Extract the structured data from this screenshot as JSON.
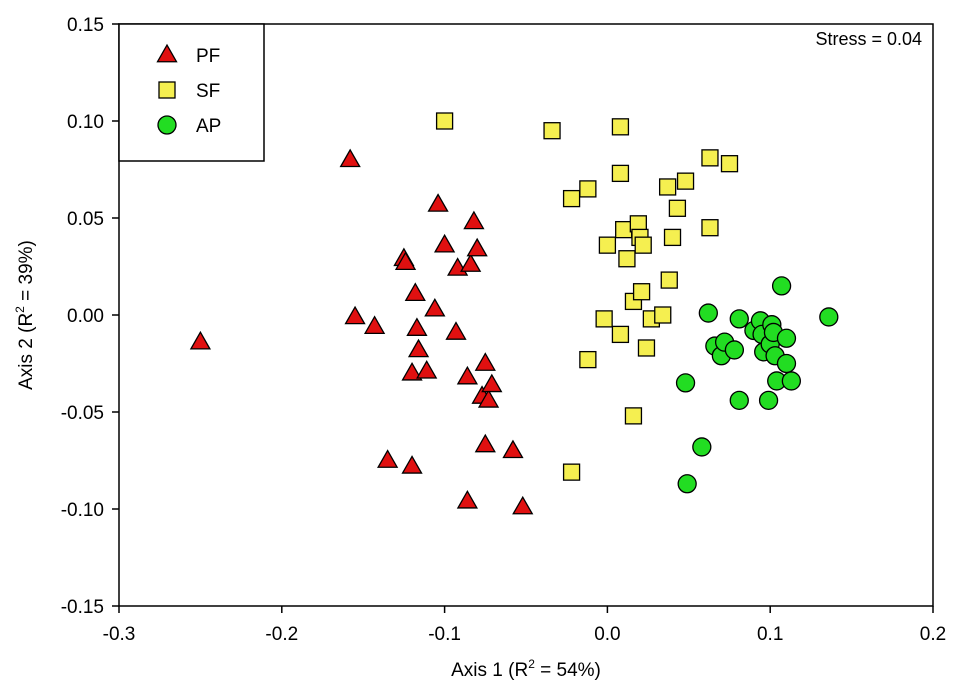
{
  "chart_data": {
    "type": "scatter",
    "title": "",
    "xlabel_parts": {
      "before": "Axis 1 (R",
      "sup": "2",
      "after": " = 54%)"
    },
    "ylabel_parts": {
      "before": "Axis 2 (R",
      "sup": "2",
      "after": " = 39%)"
    },
    "xlim": [
      -0.3,
      0.2
    ],
    "ylim": [
      -0.15,
      0.15
    ],
    "xticks": [
      "-0.3",
      "-0.2",
      "-0.1",
      "0.0",
      "0.1",
      "0.2"
    ],
    "yticks": [
      "-0.15",
      "-0.10",
      "-0.05",
      "0.00",
      "0.05",
      "0.10",
      "0.15"
    ],
    "grid": false,
    "legend_position": "top-left",
    "annotation": "Stress = 0.04",
    "series": [
      {
        "name": "PF",
        "marker": "triangle",
        "color": "#e01010",
        "points": [
          [
            -0.25,
            -0.014
          ],
          [
            -0.158,
            0.08
          ],
          [
            -0.155,
            -0.001
          ],
          [
            -0.143,
            -0.006
          ],
          [
            -0.135,
            -0.075
          ],
          [
            -0.125,
            0.029
          ],
          [
            -0.124,
            0.027
          ],
          [
            -0.12,
            -0.03
          ],
          [
            -0.12,
            -0.078
          ],
          [
            -0.118,
            0.011
          ],
          [
            -0.117,
            -0.007
          ],
          [
            -0.116,
            -0.018
          ],
          [
            -0.111,
            -0.029
          ],
          [
            -0.106,
            0.003
          ],
          [
            -0.104,
            0.057
          ],
          [
            -0.1,
            0.036
          ],
          [
            -0.093,
            -0.009
          ],
          [
            -0.092,
            0.024
          ],
          [
            -0.086,
            -0.032
          ],
          [
            -0.086,
            -0.096
          ],
          [
            -0.084,
            0.026
          ],
          [
            -0.082,
            0.048
          ],
          [
            -0.08,
            0.034
          ],
          [
            -0.077,
            -0.042
          ],
          [
            -0.075,
            -0.025
          ],
          [
            -0.075,
            -0.067
          ],
          [
            -0.073,
            -0.044
          ],
          [
            -0.071,
            -0.036
          ],
          [
            -0.058,
            -0.07
          ],
          [
            -0.052,
            -0.099
          ]
        ]
      },
      {
        "name": "SF",
        "marker": "square",
        "color": "#f5ef50",
        "points": [
          [
            -0.1,
            0.1
          ],
          [
            -0.034,
            0.095
          ],
          [
            -0.022,
            0.06
          ],
          [
            -0.022,
            -0.081
          ],
          [
            -0.012,
            -0.023
          ],
          [
            -0.012,
            0.065
          ],
          [
            -0.002,
            -0.002
          ],
          [
            0.0,
            0.036
          ],
          [
            0.008,
            0.097
          ],
          [
            0.008,
            0.073
          ],
          [
            0.008,
            -0.01
          ],
          [
            0.01,
            0.044
          ],
          [
            0.012,
            0.029
          ],
          [
            0.016,
            -0.052
          ],
          [
            0.016,
            0.007
          ],
          [
            0.019,
            0.047
          ],
          [
            0.02,
            0.04
          ],
          [
            0.021,
            0.012
          ],
          [
            0.022,
            0.036
          ],
          [
            0.024,
            -0.017
          ],
          [
            0.027,
            -0.002
          ],
          [
            0.034,
            0.0
          ],
          [
            0.037,
            0.066
          ],
          [
            0.038,
            0.018
          ],
          [
            0.04,
            0.04
          ],
          [
            0.043,
            0.055
          ],
          [
            0.048,
            0.069
          ],
          [
            0.063,
            0.081
          ],
          [
            0.063,
            0.045
          ],
          [
            0.075,
            0.078
          ]
        ]
      },
      {
        "name": "AP",
        "marker": "circle",
        "color": "#22dd22",
        "points": [
          [
            0.048,
            -0.035
          ],
          [
            0.049,
            -0.087
          ],
          [
            0.058,
            -0.068
          ],
          [
            0.062,
            0.001
          ],
          [
            0.066,
            -0.016
          ],
          [
            0.07,
            -0.021
          ],
          [
            0.072,
            -0.014
          ],
          [
            0.078,
            -0.018
          ],
          [
            0.081,
            -0.002
          ],
          [
            0.081,
            -0.044
          ],
          [
            0.09,
            -0.008
          ],
          [
            0.094,
            -0.003
          ],
          [
            0.095,
            -0.01
          ],
          [
            0.096,
            -0.019
          ],
          [
            0.099,
            -0.044
          ],
          [
            0.1,
            -0.015
          ],
          [
            0.101,
            -0.005
          ],
          [
            0.102,
            -0.009
          ],
          [
            0.103,
            -0.021
          ],
          [
            0.104,
            -0.034
          ],
          [
            0.107,
            0.015
          ],
          [
            0.11,
            -0.025
          ],
          [
            0.11,
            -0.012
          ],
          [
            0.113,
            -0.034
          ],
          [
            0.136,
            -0.001
          ]
        ]
      }
    ]
  }
}
